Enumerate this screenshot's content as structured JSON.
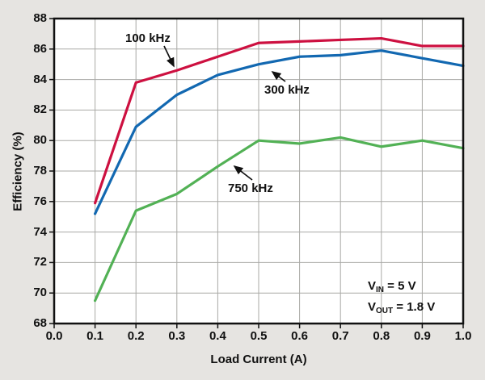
{
  "colors": {
    "background": "#e6e4e1",
    "plot_background": "#ffffff",
    "grid": "#a9a9a6",
    "axis": "#111111",
    "text": "#111111",
    "series_red": "#cd1040",
    "series_blue": "#1268b1",
    "series_green": "#52b155"
  },
  "annotation": {
    "line1": {
      "prefix": "V",
      "sub": "IN",
      "suffix": " = 5 V"
    },
    "line2": {
      "prefix": "V",
      "sub": "OUT",
      "suffix": " = 1.8 V"
    }
  },
  "chart_data": {
    "type": "line",
    "title": "",
    "xlabel": "Load Current (A)",
    "ylabel": "Efficiency (%)",
    "xlim": [
      0.0,
      1.0
    ],
    "ylim": [
      68,
      88
    ],
    "grid": true,
    "legend_position": "inline-labels-with-arrows",
    "xticks": [
      "0.0",
      "0.1",
      "0.2",
      "0.3",
      "0.4",
      "0.5",
      "0.6",
      "0.7",
      "0.8",
      "0.9",
      "1.0"
    ],
    "yticks": [
      "68",
      "70",
      "72",
      "74",
      "76",
      "78",
      "80",
      "82",
      "84",
      "86",
      "88"
    ],
    "x": [
      0.1,
      0.2,
      0.3,
      0.4,
      0.5,
      0.6,
      0.7,
      0.8,
      0.9,
      1.0
    ],
    "series": [
      {
        "name": "100 kHz",
        "color": "#cd1040",
        "values": [
          75.9,
          83.8,
          84.6,
          85.5,
          86.4,
          86.5,
          86.6,
          86.7,
          86.2,
          86.2
        ]
      },
      {
        "name": "300 kHz",
        "color": "#1268b1",
        "values": [
          75.2,
          80.9,
          83.0,
          84.3,
          85.0,
          85.5,
          85.6,
          85.9,
          85.4,
          84.9
        ]
      },
      {
        "name": "750 kHz",
        "color": "#52b155",
        "values": [
          69.5,
          75.4,
          76.5,
          78.3,
          80.0,
          79.8,
          80.2,
          79.6,
          80.0,
          79.5
        ]
      }
    ],
    "annotations_text": [
      "VIN = 5 V",
      "VOUT = 1.8 V"
    ]
  }
}
